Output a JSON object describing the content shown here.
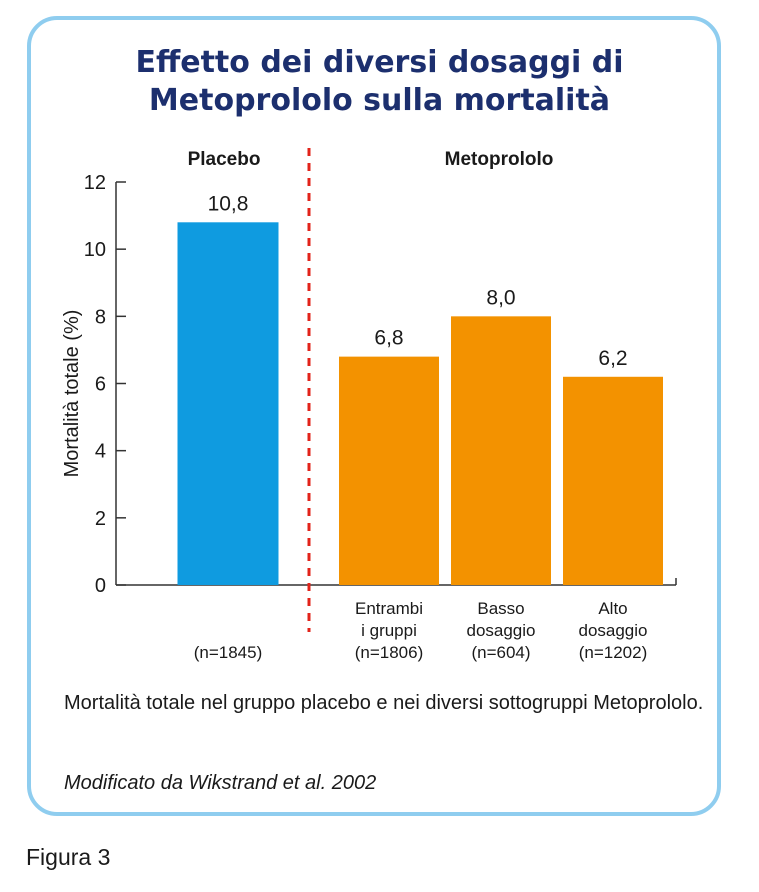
{
  "chart_data": {
    "type": "bar",
    "title_lines": [
      "Effetto dei diversi dosaggi di",
      "Metoprololo sulla mortalità"
    ],
    "ylabel": "Mortalità totale (%)",
    "ylim": [
      0,
      12
    ],
    "yticks": [
      "0",
      "2",
      "4",
      "6",
      "8",
      "10",
      "12"
    ],
    "groups": [
      "Placebo",
      "Metoprololo"
    ],
    "bars": [
      {
        "group": "Placebo",
        "value": 10.8,
        "value_label": "10,8",
        "color": "#0f9be0",
        "category_lines": [
          "",
          "",
          "(n=1845)"
        ]
      },
      {
        "group": "Metoprololo",
        "value": 6.8,
        "value_label": "6,8",
        "color": "#f39200",
        "category_lines": [
          "Entrambi",
          "i gruppi",
          "(n=1806)"
        ]
      },
      {
        "group": "Metoprololo",
        "value": 8.0,
        "value_label": "8,0",
        "color": "#f39200",
        "category_lines": [
          "Basso",
          "dosaggio",
          "(n=604)"
        ]
      },
      {
        "group": "Metoprololo",
        "value": 6.2,
        "value_label": "6,2",
        "color": "#f39200",
        "category_lines": [
          "Alto",
          "dosaggio",
          "(n=1202)"
        ]
      }
    ],
    "separator_color": "#e2231a",
    "grid": false,
    "legend": "none"
  },
  "caption": "Mortalità totale nel gruppo placebo e nei diversi sottogruppi Metoprololo.",
  "source": "Modificato da Wikstrand et al. 2002",
  "figure_label": "Figura 3",
  "colors": {
    "frame": "#8fcdef",
    "title": "#1c2f6e"
  }
}
